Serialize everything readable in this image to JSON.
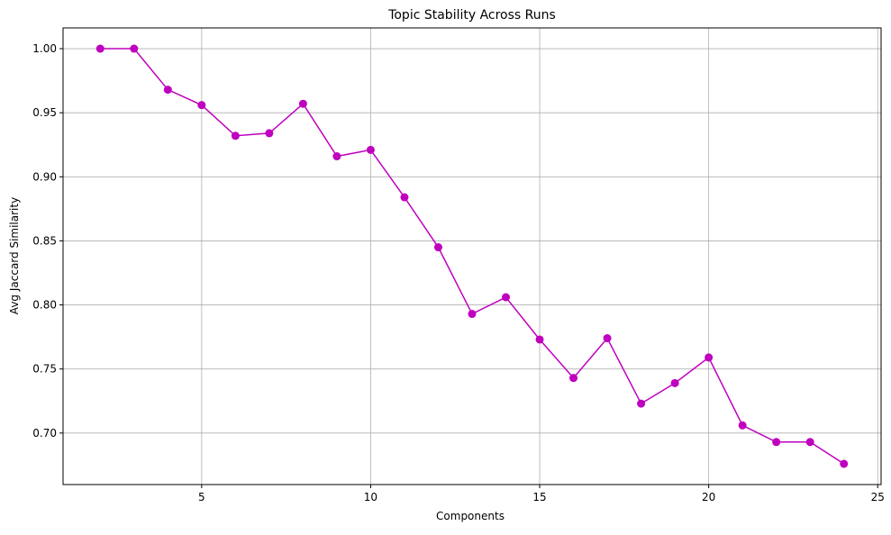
{
  "chart_data": {
    "type": "line",
    "title": "Topic Stability Across Runs",
    "x_label": "Components",
    "y_label": "Avg Jaccard Similarity",
    "x": [
      2,
      3,
      4,
      5,
      6,
      7,
      8,
      9,
      10,
      11,
      12,
      13,
      14,
      15,
      16,
      17,
      18,
      19,
      20,
      21,
      22,
      23,
      24
    ],
    "series": [
      {
        "name": "Avg Jaccard Similarity",
        "color": "#bf00bf",
        "values": [
          1.0,
          1.0,
          0.968,
          0.956,
          0.932,
          0.934,
          0.957,
          0.916,
          0.921,
          0.884,
          0.845,
          0.793,
          0.806,
          0.773,
          0.743,
          0.774,
          0.723,
          0.739,
          0.759,
          0.706,
          0.693,
          0.693,
          0.676
        ]
      }
    ],
    "xlim": [
      0.9,
      25.1
    ],
    "xticks": [
      5,
      10,
      15,
      20,
      25
    ],
    "ylim": [
      0.6598,
      1.0162
    ],
    "yticks": [
      {
        "value": 0.7,
        "label": "0.70"
      },
      0.75,
      {
        "value": 0.8,
        "label": "0.80"
      },
      0.85,
      {
        "value": 0.9,
        "label": "0.90"
      },
      0.95,
      {
        "value": 1.0,
        "label": "1.00"
      }
    ],
    "grid": true
  }
}
